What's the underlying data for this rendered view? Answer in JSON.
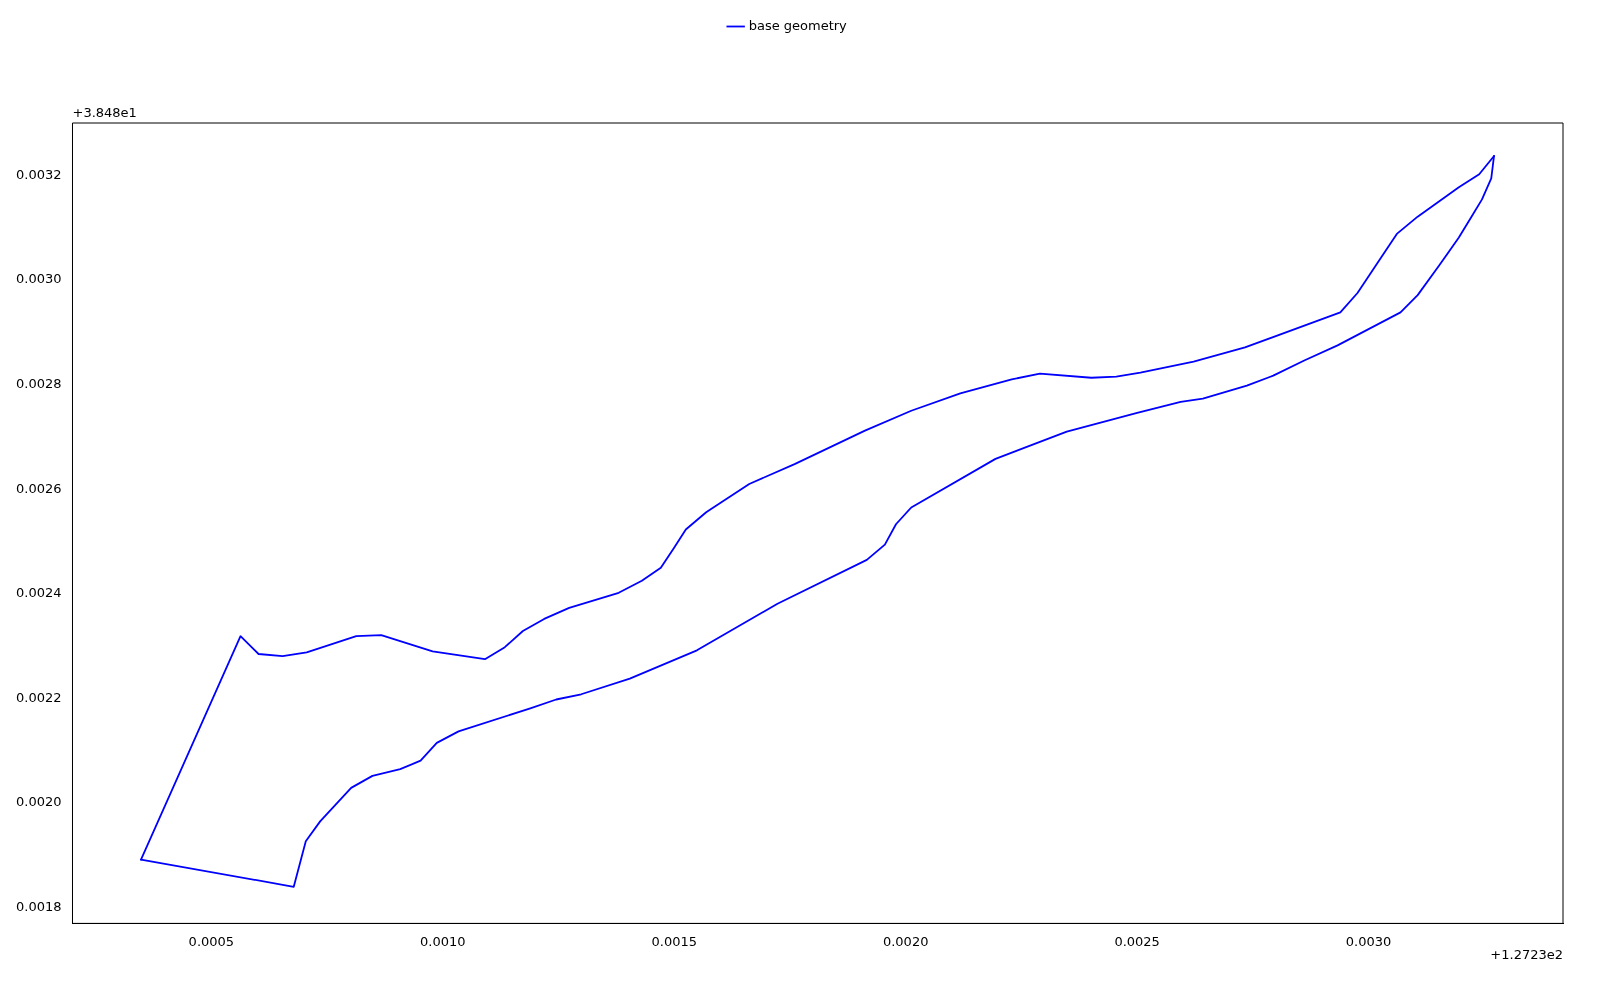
{
  "chart_data": {
    "type": "line",
    "legend": "top",
    "grid": false,
    "marker": "none",
    "line_style": "solid",
    "annotations": [
      "+3.848e1",
      "+1.2723e2"
    ],
    "xlim": [
      0.0002,
      0.00342
    ],
    "ylim": [
      0.00177,
      0.0033
    ],
    "xticks": [
      0.0005,
      {
        "value": 0.001,
        "label": "0.0010"
      },
      0.0015,
      {
        "value": 0.002,
        "label": "0.0020"
      },
      0.0025,
      {
        "value": 0.003,
        "label": "0.0030"
      }
    ],
    "yticks": [
      0.0018,
      {
        "value": 0.002,
        "label": "0.0020"
      },
      0.0022,
      0.0024,
      0.0026,
      0.0028,
      {
        "value": 0.003,
        "label": "0.0030"
      },
      0.0032
    ],
    "series": [
      {
        "name": "base geometry",
        "color": "#0000ff",
        "x": [
          0.000348,
          0.000563,
          0.000602,
          0.000654,
          0.000706,
          0.000813,
          0.000867,
          0.000978,
          0.001091,
          0.001134,
          0.001173,
          0.001219,
          0.001273,
          0.00138,
          0.00143,
          0.001471,
          0.001499,
          0.001525,
          0.001569,
          0.001662,
          0.00176,
          0.001912,
          0.002012,
          0.002118,
          0.002229,
          0.00229,
          0.002401,
          0.002455,
          0.002507,
          0.002622,
          0.002733,
          0.002939,
          0.002976,
          0.003061,
          0.003106,
          0.003195,
          0.003239,
          0.003271
        ],
        "values": [
          0.001892,
          0.002319,
          0.002285,
          0.002281,
          0.002288,
          0.002319,
          0.002321,
          0.00229,
          0.002275,
          0.002298,
          0.002329,
          0.002352,
          0.002373,
          0.002402,
          0.002425,
          0.00245,
          0.002487,
          0.002523,
          0.002556,
          0.00261,
          0.002648,
          0.002712,
          0.00275,
          0.002783,
          0.00281,
          0.002821,
          0.002813,
          0.002815,
          0.002823,
          0.002844,
          0.002871,
          0.002938,
          0.002975,
          0.003088,
          0.003121,
          0.003177,
          0.003202,
          0.003237
        ]
      },
      {
        "color": "#0000ff",
        "x": [
          0.000348,
          0.000678,
          0.000704,
          0.000735,
          0.000802,
          0.000848,
          0.000908,
          0.000952,
          0.000987,
          0.001034,
          0.001189,
          0.001245,
          0.001299,
          0.001404,
          0.001549,
          0.001723,
          0.001916,
          0.001955,
          0.001979,
          0.002012,
          0.002194,
          0.002348,
          0.0025,
          0.002594,
          0.002642,
          0.002737,
          0.002794,
          0.002861,
          0.002933,
          0.003069,
          0.003106,
          0.003152,
          0.003195,
          0.003221,
          0.003245,
          0.003265,
          0.003271
        ],
        "values": [
          0.001892,
          0.00184,
          0.001927,
          0.001965,
          0.002029,
          0.002052,
          0.002065,
          0.002081,
          0.002115,
          0.002137,
          0.002181,
          0.002198,
          0.002208,
          0.002238,
          0.002292,
          0.002381,
          0.002465,
          0.002494,
          0.002533,
          0.002565,
          0.002658,
          0.00271,
          0.002746,
          0.002767,
          0.002773,
          0.002798,
          0.002817,
          0.002846,
          0.002875,
          0.002938,
          0.002971,
          0.003027,
          0.003081,
          0.003119,
          0.003154,
          0.003194,
          0.003237
        ]
      }
    ]
  }
}
